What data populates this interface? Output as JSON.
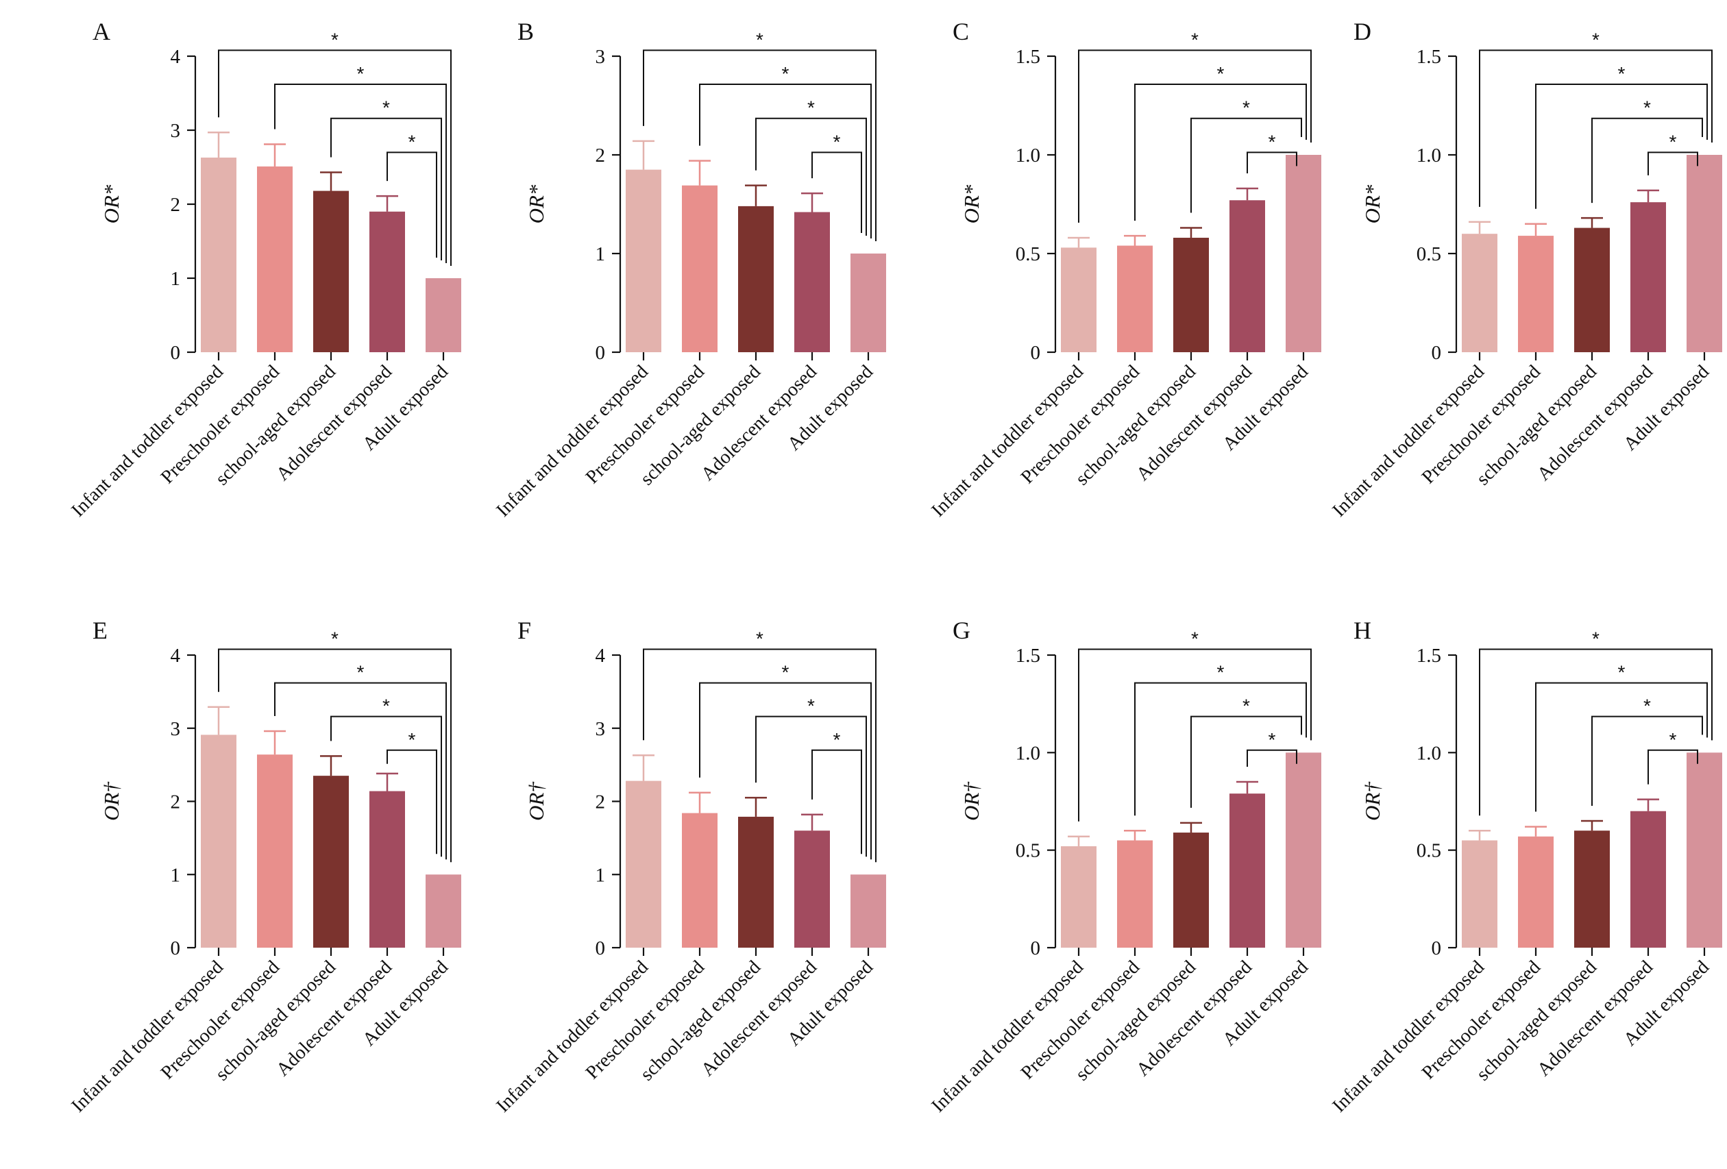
{
  "figure": {
    "categories": [
      "Infant and toddler exposed",
      "Preschooler exposed",
      "school-aged exposed",
      "Adolescent exposed",
      "Adult exposed"
    ],
    "colors": [
      "#e3b2ad",
      "#e88f8c",
      "#7b332e",
      "#a24b5f",
      "#d6929a"
    ],
    "significance_symbol": "*"
  },
  "chart_data": [
    {
      "type": "bar",
      "panel": "A",
      "ylabel": "OR*",
      "ylim": [
        0,
        4
      ],
      "yticks": [
        "0",
        "1",
        "2",
        "3",
        "4"
      ],
      "values": [
        2.63,
        2.51,
        2.18,
        1.9,
        1.0
      ],
      "errors": [
        0.34,
        0.3,
        0.25,
        0.21,
        0.0
      ],
      "comparisons": [
        {
          "from": 0,
          "to": 4,
          "label": "*"
        },
        {
          "from": 1,
          "to": 4,
          "label": "*"
        },
        {
          "from": 2,
          "to": 4,
          "label": "*"
        },
        {
          "from": 3,
          "to": 4,
          "label": "*"
        }
      ]
    },
    {
      "type": "bar",
      "panel": "B",
      "ylabel": "OR*",
      "ylim": [
        0,
        3
      ],
      "yticks": [
        "0",
        "1",
        "2",
        "3"
      ],
      "values": [
        1.85,
        1.69,
        1.48,
        1.42,
        1.0
      ],
      "errors": [
        0.29,
        0.25,
        0.21,
        0.19,
        0.0
      ],
      "comparisons": [
        {
          "from": 0,
          "to": 4,
          "label": "*"
        },
        {
          "from": 1,
          "to": 4,
          "label": "*"
        },
        {
          "from": 2,
          "to": 4,
          "label": "*"
        },
        {
          "from": 3,
          "to": 4,
          "label": "*"
        }
      ]
    },
    {
      "type": "bar",
      "panel": "C",
      "ylabel": "OR*",
      "ylim": [
        0,
        1.5
      ],
      "yticks": [
        "0",
        "0.5",
        "1.0",
        "1.5"
      ],
      "values": [
        0.53,
        0.54,
        0.58,
        0.77,
        1.0
      ],
      "errors": [
        0.05,
        0.05,
        0.05,
        0.06,
        0.0
      ],
      "comparisons": [
        {
          "from": 0,
          "to": 4,
          "label": "*"
        },
        {
          "from": 1,
          "to": 4,
          "label": "*"
        },
        {
          "from": 2,
          "to": 4,
          "label": "*"
        },
        {
          "from": 3,
          "to": 4,
          "label": "*"
        }
      ]
    },
    {
      "type": "bar",
      "panel": "D",
      "ylabel": "OR*",
      "ylim": [
        0,
        1.5
      ],
      "yticks": [
        "0",
        "0.5",
        "1.0",
        "1.5"
      ],
      "values": [
        0.6,
        0.59,
        0.63,
        0.76,
        1.0
      ],
      "errors": [
        0.06,
        0.06,
        0.05,
        0.06,
        0.0
      ],
      "comparisons": [
        {
          "from": 0,
          "to": 4,
          "label": "*"
        },
        {
          "from": 1,
          "to": 4,
          "label": "*"
        },
        {
          "from": 2,
          "to": 4,
          "label": "*"
        },
        {
          "from": 3,
          "to": 4,
          "label": "*"
        }
      ]
    },
    {
      "type": "bar",
      "panel": "E",
      "ylabel": "OR†",
      "ylim": [
        0,
        4
      ],
      "yticks": [
        "0",
        "1",
        "2",
        "3",
        "4"
      ],
      "values": [
        2.91,
        2.64,
        2.35,
        2.14,
        1.0
      ],
      "errors": [
        0.38,
        0.32,
        0.27,
        0.24,
        0.0
      ],
      "comparisons": [
        {
          "from": 0,
          "to": 4,
          "label": "*"
        },
        {
          "from": 1,
          "to": 4,
          "label": "*"
        },
        {
          "from": 2,
          "to": 4,
          "label": "*"
        },
        {
          "from": 3,
          "to": 4,
          "label": "*"
        }
      ]
    },
    {
      "type": "bar",
      "panel": "F",
      "ylabel": "OR†",
      "ylim": [
        0,
        4
      ],
      "yticks": [
        "0",
        "1",
        "2",
        "3",
        "4"
      ],
      "values": [
        2.28,
        1.84,
        1.79,
        1.6,
        1.0
      ],
      "errors": [
        0.35,
        0.28,
        0.26,
        0.22,
        0.0
      ],
      "comparisons": [
        {
          "from": 0,
          "to": 4,
          "label": "*"
        },
        {
          "from": 1,
          "to": 4,
          "label": "*"
        },
        {
          "from": 2,
          "to": 4,
          "label": "*"
        },
        {
          "from": 3,
          "to": 4,
          "label": "*"
        }
      ]
    },
    {
      "type": "bar",
      "panel": "G",
      "ylabel": "OR†",
      "ylim": [
        0,
        1.5
      ],
      "yticks": [
        "0",
        "0.5",
        "1.0",
        "1.5"
      ],
      "values": [
        0.52,
        0.55,
        0.59,
        0.79,
        1.0
      ],
      "errors": [
        0.05,
        0.05,
        0.05,
        0.06,
        0.0
      ],
      "comparisons": [
        {
          "from": 0,
          "to": 4,
          "label": "*"
        },
        {
          "from": 1,
          "to": 4,
          "label": "*"
        },
        {
          "from": 2,
          "to": 4,
          "label": "*"
        },
        {
          "from": 3,
          "to": 4,
          "label": "*"
        }
      ]
    },
    {
      "type": "bar",
      "panel": "H",
      "ylabel": "OR†",
      "ylim": [
        0,
        1.5
      ],
      "yticks": [
        "0",
        "0.5",
        "1.0",
        "1.5"
      ],
      "values": [
        0.55,
        0.57,
        0.6,
        0.7,
        1.0
      ],
      "errors": [
        0.05,
        0.05,
        0.05,
        0.06,
        0.0
      ],
      "comparisons": [
        {
          "from": 0,
          "to": 4,
          "label": "*"
        },
        {
          "from": 1,
          "to": 4,
          "label": "*"
        },
        {
          "from": 2,
          "to": 4,
          "label": "*"
        },
        {
          "from": 3,
          "to": 4,
          "label": "*"
        }
      ]
    }
  ]
}
